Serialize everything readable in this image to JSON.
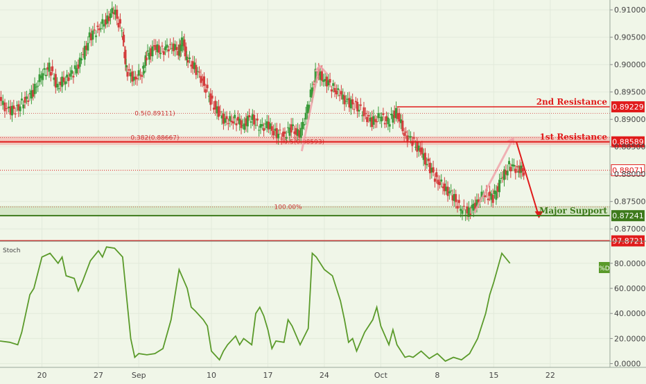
{
  "chart_data": [
    {
      "type": "candlestick",
      "panel": "price",
      "yticks": [
        0.87,
        0.875,
        0.88,
        0.885,
        0.89,
        0.895,
        0.9,
        0.905,
        0.91
      ],
      "ytick_labels": [
        "0.87000",
        "0.87500",
        "0.88000",
        "0.88500",
        "0.89000",
        "0.89500",
        "0.90000",
        "0.90500",
        "0.91000"
      ],
      "ylim": [
        0.868,
        0.9118
      ],
      "xticks": [
        {
          "label": "20",
          "t": 0
        },
        {
          "label": "27",
          "t": 7
        },
        {
          "label": "Sep",
          "t": 12
        },
        {
          "label": "10",
          "t": 21
        },
        {
          "label": "17",
          "t": 28
        },
        {
          "label": "24",
          "t": 35
        },
        {
          "label": "Oct",
          "t": 42
        },
        {
          "label": "8",
          "t": 49
        },
        {
          "label": "15",
          "t": 56
        },
        {
          "label": "22",
          "t": 63
        }
      ],
      "xlim": [
        -5.2,
        70.4
      ],
      "closes": [
        {
          "t": -5.2,
          "v": 0.8935
        },
        {
          "t": -4.0,
          "v": 0.8915
        },
        {
          "t": -3.0,
          "v": 0.892
        },
        {
          "t": -2.0,
          "v": 0.8935
        },
        {
          "t": -1.0,
          "v": 0.895
        },
        {
          "t": 0.0,
          "v": 0.898
        },
        {
          "t": 1.0,
          "v": 0.8995
        },
        {
          "t": 2.0,
          "v": 0.896
        },
        {
          "t": 3.0,
          "v": 0.8975
        },
        {
          "t": 4.0,
          "v": 0.8985
        },
        {
          "t": 5.0,
          "v": 0.901
        },
        {
          "t": 6.0,
          "v": 0.905
        },
        {
          "t": 7.0,
          "v": 0.9065
        },
        {
          "t": 8.0,
          "v": 0.908
        },
        {
          "t": 9.0,
          "v": 0.91
        },
        {
          "t": 10.0,
          "v": 0.906
        },
        {
          "t": 10.5,
          "v": 0.899
        },
        {
          "t": 11.5,
          "v": 0.8975
        },
        {
          "t": 12.5,
          "v": 0.8985
        },
        {
          "t": 13.0,
          "v": 0.9015
        },
        {
          "t": 14.0,
          "v": 0.903
        },
        {
          "t": 15.0,
          "v": 0.9025
        },
        {
          "t": 16.0,
          "v": 0.9035
        },
        {
          "t": 17.0,
          "v": 0.9025
        },
        {
          "t": 17.5,
          "v": 0.9045
        },
        {
          "t": 18.0,
          "v": 0.901
        },
        {
          "t": 19.0,
          "v": 0.8995
        },
        {
          "t": 20.0,
          "v": 0.897
        },
        {
          "t": 21.0,
          "v": 0.8935
        },
        {
          "t": 22.0,
          "v": 0.891
        },
        {
          "t": 23.0,
          "v": 0.8895
        },
        {
          "t": 24.0,
          "v": 0.89
        },
        {
          "t": 25.0,
          "v": 0.889
        },
        {
          "t": 26.0,
          "v": 0.8905
        },
        {
          "t": 27.0,
          "v": 0.8885
        },
        {
          "t": 28.0,
          "v": 0.889
        },
        {
          "t": 29.0,
          "v": 0.8875
        },
        {
          "t": 30.0,
          "v": 0.887
        },
        {
          "t": 31.0,
          "v": 0.8885
        },
        {
          "t": 32.0,
          "v": 0.887
        },
        {
          "t": 33.0,
          "v": 0.892
        },
        {
          "t": 34.0,
          "v": 0.8985
        },
        {
          "t": 35.0,
          "v": 0.8975
        },
        {
          "t": 36.0,
          "v": 0.896
        },
        {
          "t": 37.0,
          "v": 0.8945
        },
        {
          "t": 38.0,
          "v": 0.893
        },
        {
          "t": 39.0,
          "v": 0.8925
        },
        {
          "t": 40.0,
          "v": 0.891
        },
        {
          "t": 41.0,
          "v": 0.8895
        },
        {
          "t": 42.0,
          "v": 0.8905
        },
        {
          "t": 43.0,
          "v": 0.8895
        },
        {
          "t": 44.0,
          "v": 0.8915
        },
        {
          "t": 45.0,
          "v": 0.8875
        },
        {
          "t": 46.0,
          "v": 0.886
        },
        {
          "t": 47.0,
          "v": 0.884
        },
        {
          "t": 48.0,
          "v": 0.8815
        },
        {
          "t": 49.0,
          "v": 0.879
        },
        {
          "t": 50.0,
          "v": 0.8775
        },
        {
          "t": 51.0,
          "v": 0.876
        },
        {
          "t": 52.0,
          "v": 0.8735
        },
        {
          "t": 53.0,
          "v": 0.873
        },
        {
          "t": 54.0,
          "v": 0.875
        },
        {
          "t": 55.0,
          "v": 0.8765
        },
        {
          "t": 56.0,
          "v": 0.8755
        },
        {
          "t": 57.0,
          "v": 0.879
        },
        {
          "t": 58.0,
          "v": 0.8815
        },
        {
          "t": 59.0,
          "v": 0.881
        },
        {
          "t": 59.8,
          "v": 0.8805
        }
      ],
      "horizontal_levels": [
        {
          "label": "2nd Resistance",
          "price": 0.89229,
          "price_label": "0.89229",
          "color": "#e01b1b"
        },
        {
          "label": "1st Resistance",
          "price": 0.88589,
          "price_label": "0.88589",
          "color": "#e01b1b"
        },
        {
          "label": "Major Support",
          "price": 0.87241,
          "price_label": "0.87241",
          "color": "#3d7a1c"
        }
      ],
      "last_price": {
        "price": 0.88071,
        "label": "0.88071",
        "color": "#e01b1b"
      },
      "fib_labels": [
        {
          "text": "0.5(0.89111)",
          "t": 14.0,
          "price": 0.89111
        },
        {
          "text": "0.382(0.88667)",
          "t": 14.0,
          "price": 0.88667
        },
        {
          "text": "0.5(0.88593)",
          "t": 32.5,
          "price": 0.88593
        },
        {
          "text": "100.00%",
          "t": 30.5,
          "price": 0.874
        }
      ],
      "fib_levels": [
        0.89111,
        0.88667,
        0.88593,
        0.874
      ],
      "resistance_zone": [
        0.8853,
        0.8869
      ],
      "support_zone": [
        0.87241,
        0.8742
      ]
    },
    {
      "type": "line",
      "panel": "indicator",
      "name": "Stoch",
      "label": "Stoch",
      "series_tag": "%D",
      "yticks": [
        0,
        20,
        40,
        60,
        80
      ],
      "ytick_labels": [
        "0.0000",
        "20.0000",
        "40.0000",
        "60.0000",
        "80.0000"
      ],
      "ylim": [
        -3,
        96.5
      ],
      "level": {
        "value": 97.8721,
        "label": "97.8721"
      },
      "x": [
        -5.2,
        -4.0,
        -3.0,
        -2.5,
        -1.5,
        -1.0,
        0.0,
        1.0,
        2.0,
        2.5,
        3.0,
        4.0,
        4.5,
        5.0,
        6.0,
        7.0,
        7.5,
        8.0,
        9.0,
        10.0,
        11.0,
        11.5,
        12.0,
        13.0,
        14.0,
        15.0,
        16.0,
        17.0,
        18.0,
        18.5,
        19.0,
        20.0,
        20.5,
        21.0,
        22.0,
        22.5,
        23.0,
        24.0,
        24.5,
        25.0,
        26.0,
        26.5,
        27.0,
        27.5,
        28.0,
        28.5,
        29.0,
        30.0,
        30.5,
        31.0,
        32.0,
        33.0,
        33.5,
        34.0,
        35.0,
        36.0,
        37.0,
        37.5,
        38.0,
        38.5,
        39.0,
        40.0,
        41.0,
        41.5,
        42.0,
        43.0,
        43.5,
        44.0,
        45.0,
        45.5,
        46.0,
        47.0,
        48.0,
        49.0,
        50.0,
        51.0,
        52.0,
        53.0,
        54.0,
        55.0,
        55.5,
        56.0,
        57.0,
        58.0
      ],
      "values": [
        18,
        17,
        15,
        25,
        55,
        60,
        85,
        88,
        80,
        85,
        70,
        68,
        58,
        65,
        82,
        90,
        85,
        93,
        92,
        85,
        20,
        5,
        8,
        7,
        8,
        12,
        35,
        75,
        60,
        45,
        42,
        35,
        30,
        10,
        3,
        10,
        15,
        22,
        15,
        20,
        15,
        40,
        45,
        38,
        27,
        12,
        18,
        17,
        35,
        30,
        15,
        28,
        88,
        85,
        75,
        70,
        50,
        35,
        17,
        20,
        10,
        25,
        35,
        45,
        30,
        15,
        27,
        15,
        5,
        6,
        5,
        10,
        4,
        8,
        2,
        5,
        3,
        8,
        20,
        40,
        55,
        65,
        88,
        80
      ]
    }
  ]
}
